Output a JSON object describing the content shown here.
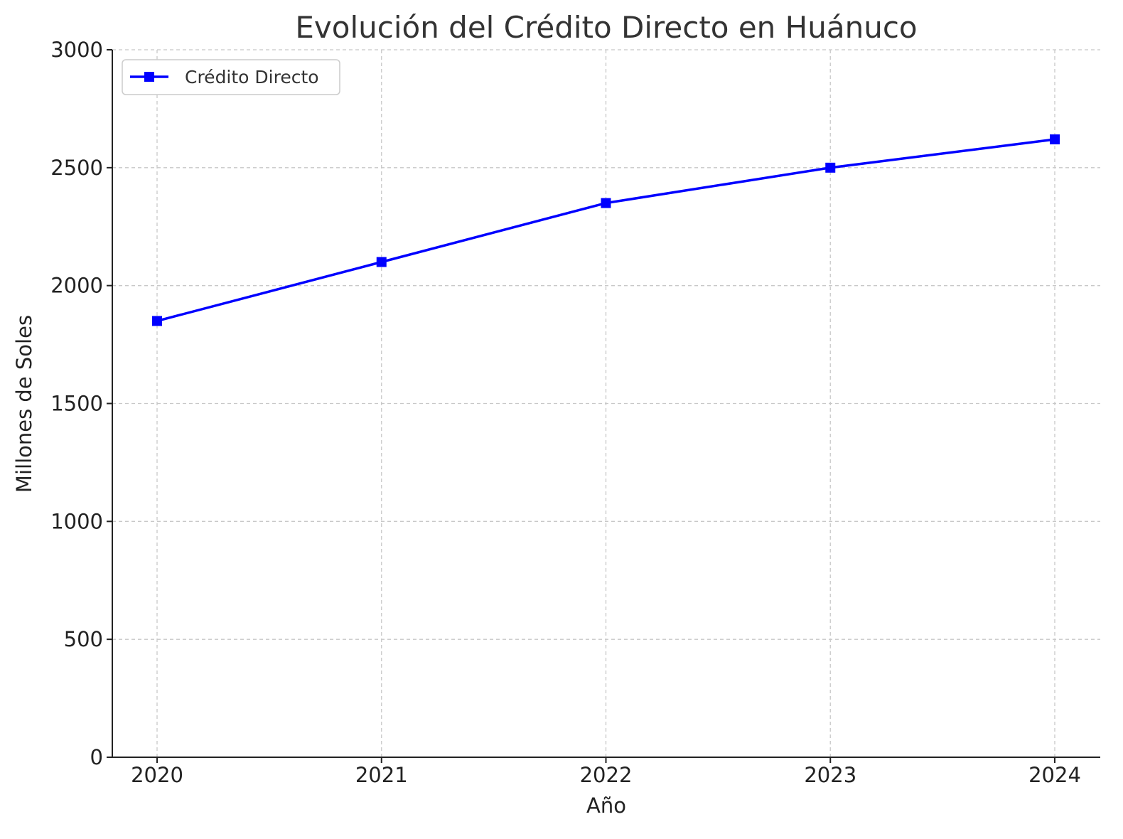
{
  "chart_data": {
    "type": "line",
    "title": "Evolución del Crédito Directo en Huánuco",
    "xlabel": "Año",
    "ylabel": "Millones de Soles",
    "categories": [
      "2020",
      "2021",
      "2022",
      "2023",
      "2024"
    ],
    "y_ticks": [
      0,
      500,
      1000,
      1500,
      2000,
      2500,
      3000
    ],
    "ylim": [
      0,
      3000
    ],
    "grid": true,
    "legend_position": "top-left",
    "series": [
      {
        "name": "Crédito Directo",
        "values": [
          1850,
          2100,
          2350,
          2500,
          2620
        ],
        "color": "#0000ff",
        "marker": "square"
      }
    ]
  }
}
